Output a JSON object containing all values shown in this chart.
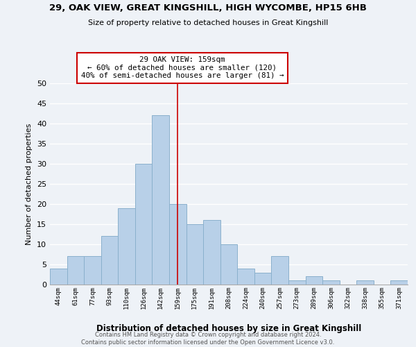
{
  "title": "29, OAK VIEW, GREAT KINGSHILL, HIGH WYCOMBE, HP15 6HB",
  "subtitle": "Size of property relative to detached houses in Great Kingshill",
  "xlabel": "Distribution of detached houses by size in Great Kingshill",
  "ylabel": "Number of detached properties",
  "bin_labels": [
    "44sqm",
    "61sqm",
    "77sqm",
    "93sqm",
    "110sqm",
    "126sqm",
    "142sqm",
    "159sqm",
    "175sqm",
    "191sqm",
    "208sqm",
    "224sqm",
    "240sqm",
    "257sqm",
    "273sqm",
    "289sqm",
    "306sqm",
    "322sqm",
    "338sqm",
    "355sqm",
    "371sqm"
  ],
  "bar_heights": [
    4,
    7,
    7,
    12,
    19,
    30,
    42,
    20,
    15,
    16,
    10,
    4,
    3,
    7,
    1,
    2,
    1,
    0,
    1,
    0,
    1
  ],
  "bar_color": "#b8d0e8",
  "bar_edge_color": "#8ab0cc",
  "highlight_index": 7,
  "highlight_line_color": "#cc0000",
  "ylim": [
    0,
    50
  ],
  "yticks": [
    0,
    5,
    10,
    15,
    20,
    25,
    30,
    35,
    40,
    45,
    50
  ],
  "annotation_title": "29 OAK VIEW: 159sqm",
  "annotation_line1": "← 60% of detached houses are smaller (120)",
  "annotation_line2": "40% of semi-detached houses are larger (81) →",
  "annotation_box_color": "#ffffff",
  "annotation_box_edge": "#cc0000",
  "footer_line1": "Contains HM Land Registry data © Crown copyright and database right 2024.",
  "footer_line2": "Contains public sector information licensed under the Open Government Licence v3.0.",
  "background_color": "#eef2f7",
  "grid_color": "#ffffff",
  "grid_lw": 1.0
}
